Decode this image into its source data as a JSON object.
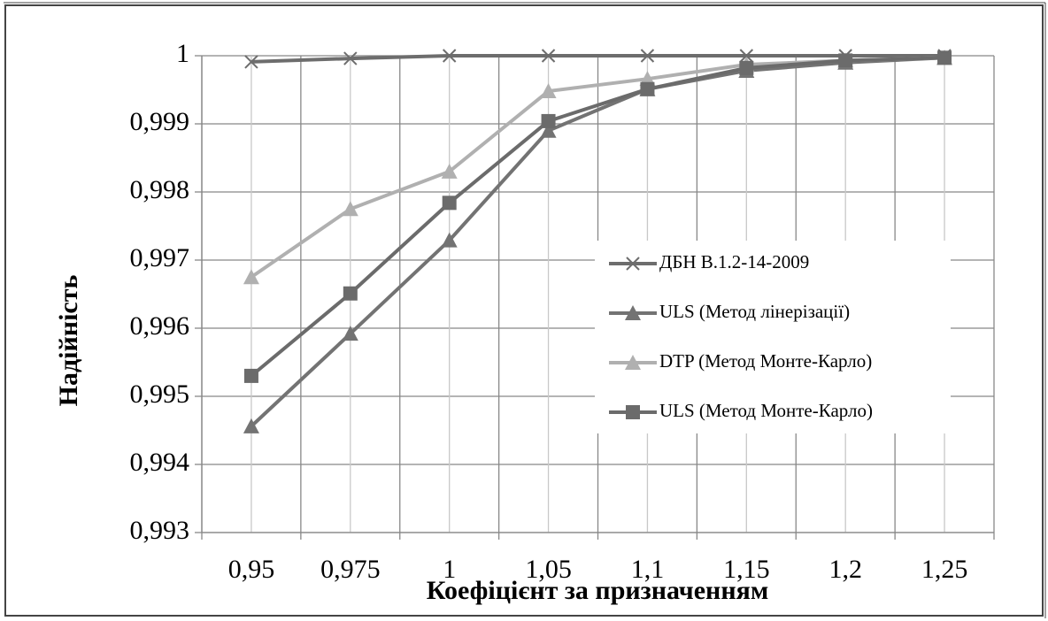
{
  "chart_data": {
    "type": "line",
    "x_label": "Коефіцієнт за призначенням",
    "y_label": "Надійність",
    "categories": [
      "0,95",
      "0,975",
      "1",
      "1,05",
      "1,1",
      "1,15",
      "1,2",
      "1,25"
    ],
    "series": [
      {
        "name": "ДБН В.1.2-14-2009",
        "color": "#6d6d6d",
        "marker": "x",
        "values": [
          0.99991,
          0.99996,
          1,
          1,
          1,
          1,
          1,
          1
        ]
      },
      {
        "name": "ULS (Метод лінерізації)",
        "color": "#737373",
        "marker": "triangle",
        "values": [
          0.99456,
          0.99592,
          0.99729,
          0.9989,
          0.99951,
          0.99978,
          0.9999,
          0.99997
        ]
      },
      {
        "name": "DTP (Метод Монте-Карло)",
        "color": "#b0b0b0",
        "marker": "triangle",
        "values": [
          0.99675,
          0.99775,
          0.9983,
          0.99948,
          0.99966,
          0.99987,
          0.99993,
          0.99997
        ]
      },
      {
        "name": "ULS  (Метод Монте-Карло)",
        "color": "#6b6b6b",
        "marker": "square",
        "values": [
          0.9953,
          0.99651,
          0.99784,
          0.99904,
          0.99951,
          0.99982,
          0.99993,
          0.99997
        ]
      }
    ],
    "ylim": [
      0.993,
      1
    ],
    "yticks": [
      {
        "value": 0.993,
        "label": "0,993"
      },
      {
        "value": 0.994,
        "label": "0,994"
      },
      {
        "value": 0.995,
        "label": "0,995"
      },
      {
        "value": 0.996,
        "label": "0,996"
      },
      {
        "value": 0.997,
        "label": "0,997"
      },
      {
        "value": 0.998,
        "label": "0,998"
      },
      {
        "value": 0.999,
        "label": "0,999"
      },
      1
    ],
    "grid": true
  }
}
